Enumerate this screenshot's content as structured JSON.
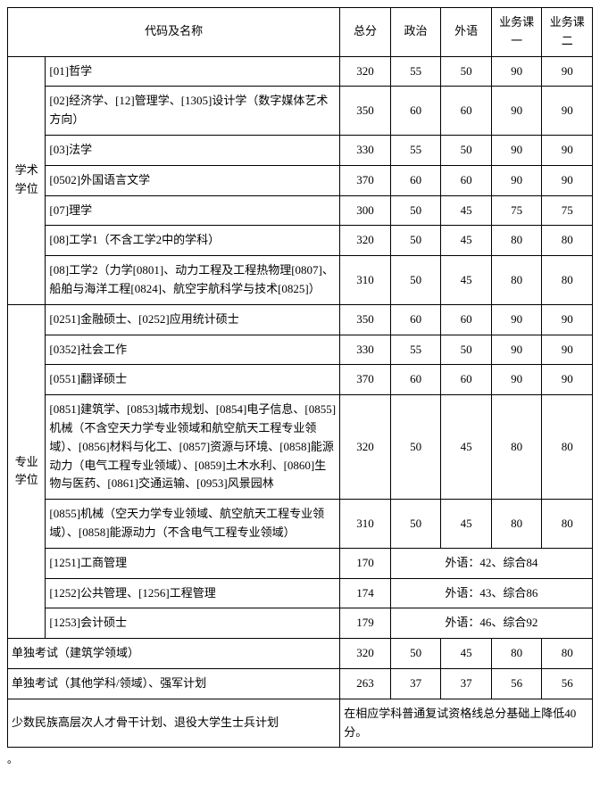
{
  "table": {
    "header": {
      "code_name": "代码及名称",
      "total": "总分",
      "politics": "政治",
      "foreign": "外语",
      "subj1": "业务课一",
      "subj2": "业务课二"
    },
    "cat_academic": "学术学位",
    "cat_professional": "专业学位",
    "academic_rows": [
      {
        "name": "[01]哲学",
        "total": "320",
        "politics": "55",
        "foreign": "50",
        "s1": "90",
        "s2": "90"
      },
      {
        "name": "[02]经济学、[12]管理学、[1305]设计学（数字媒体艺术方向）",
        "total": "350",
        "politics": "60",
        "foreign": "60",
        "s1": "90",
        "s2": "90"
      },
      {
        "name": "[03]法学",
        "total": "330",
        "politics": "55",
        "foreign": "50",
        "s1": "90",
        "s2": "90"
      },
      {
        "name": "[0502]外国语言文学",
        "total": "370",
        "politics": "60",
        "foreign": "60",
        "s1": "90",
        "s2": "90"
      },
      {
        "name": "[07]理学",
        "total": "300",
        "politics": "50",
        "foreign": "45",
        "s1": "75",
        "s2": "75"
      },
      {
        "name": "[08]工学1（不含工学2中的学科）",
        "total": "320",
        "politics": "50",
        "foreign": "45",
        "s1": "80",
        "s2": "80"
      },
      {
        "name": "[08]工学2（力学[0801]、动力工程及工程热物理[0807]、船舶与海洋工程[0824]、航空宇航科学与技术[0825]）",
        "total": "310",
        "politics": "50",
        "foreign": "45",
        "s1": "80",
        "s2": "80"
      }
    ],
    "professional_rows": [
      {
        "name": "[0251]金融硕士、[0252]应用统计硕士",
        "total": "350",
        "politics": "60",
        "foreign": "60",
        "s1": "90",
        "s2": "90"
      },
      {
        "name": "[0352]社会工作",
        "total": "330",
        "politics": "55",
        "foreign": "50",
        "s1": "90",
        "s2": "90"
      },
      {
        "name": "[0551]翻译硕士",
        "total": "370",
        "politics": "60",
        "foreign": "60",
        "s1": "90",
        "s2": "90"
      },
      {
        "name": "[0851]建筑学、[0853]城市规划、[0854]电子信息、[0855]机械（不含空天力学专业领域和航空航天工程专业领域）、[0856]材料与化工、[0857]资源与环境、[0858]能源动力（电气工程专业领域）、[0859]土木水利、[0860]生物与医药、[0861]交通运输、[0953]风景园林",
        "total": "320",
        "politics": "50",
        "foreign": "45",
        "s1": "80",
        "s2": "80"
      },
      {
        "name": "[0855]机械（空天力学专业领域、航空航天工程专业领域）、[0858]能源动力（不含电气工程专业领域）",
        "total": "310",
        "politics": "50",
        "foreign": "45",
        "s1": "80",
        "s2": "80"
      }
    ],
    "merged_rows": [
      {
        "name": "[1251]工商管理",
        "total": "170",
        "merged": "外语：42、综合84"
      },
      {
        "name": "[1252]公共管理、[1256]工程管理",
        "total": "174",
        "merged": "外语：43、综合86"
      },
      {
        "name": "[1253]会计硕士",
        "total": "179",
        "merged": "外语：46、综合92"
      }
    ],
    "standalone_rows": [
      {
        "name": "单独考试（建筑学领域）",
        "total": "320",
        "politics": "50",
        "foreign": "45",
        "s1": "80",
        "s2": "80"
      },
      {
        "name": "单独考试（其他学科/领域）、强军计划",
        "total": "263",
        "politics": "37",
        "foreign": "37",
        "s1": "56",
        "s2": "56"
      }
    ],
    "footer": {
      "left": "少数民族高层次人才骨干计划、退役大学生士兵计划",
      "right": "在相应学科普通复试资格线总分基础上降低40分。"
    }
  },
  "footmark": "。"
}
